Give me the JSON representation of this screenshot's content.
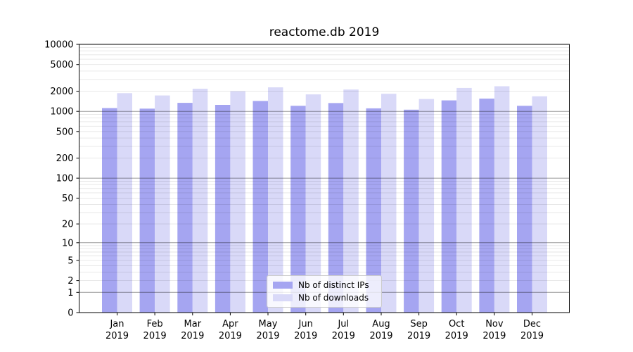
{
  "chart_data": {
    "type": "bar",
    "title": "reactome.db 2019",
    "categories": [
      "Jan",
      "Feb",
      "Mar",
      "Apr",
      "May",
      "Jun",
      "Jul",
      "Aug",
      "Sep",
      "Oct",
      "Nov",
      "Dec"
    ],
    "x_year_label": "2019",
    "series": [
      {
        "name": "Nb of distinct IPs",
        "color": "#a5a5f1",
        "values": [
          1120,
          1100,
          1340,
          1250,
          1430,
          1210,
          1330,
          1110,
          1060,
          1460,
          1550,
          1210
        ]
      },
      {
        "name": "Nb of downloads",
        "color": "#d9d9f8",
        "values": [
          1870,
          1730,
          2180,
          2000,
          2280,
          1790,
          2120,
          1830,
          1530,
          2240,
          2370,
          1680
        ]
      }
    ],
    "yscale": "log1p",
    "yticks": [
      0,
      1,
      2,
      5,
      10,
      20,
      50,
      100,
      200,
      500,
      1000,
      2000,
      5000,
      10000
    ],
    "ylim": [
      0,
      10000
    ],
    "xlabel": "",
    "ylabel": "",
    "grid": true,
    "legend_position": "lower center",
    "colors": {
      "major_grid": "rgba(0,0,0,0.40)",
      "minor_grid": "rgba(0,0,0,0.10)",
      "spine": "#000000",
      "background": "#ffffff"
    }
  }
}
